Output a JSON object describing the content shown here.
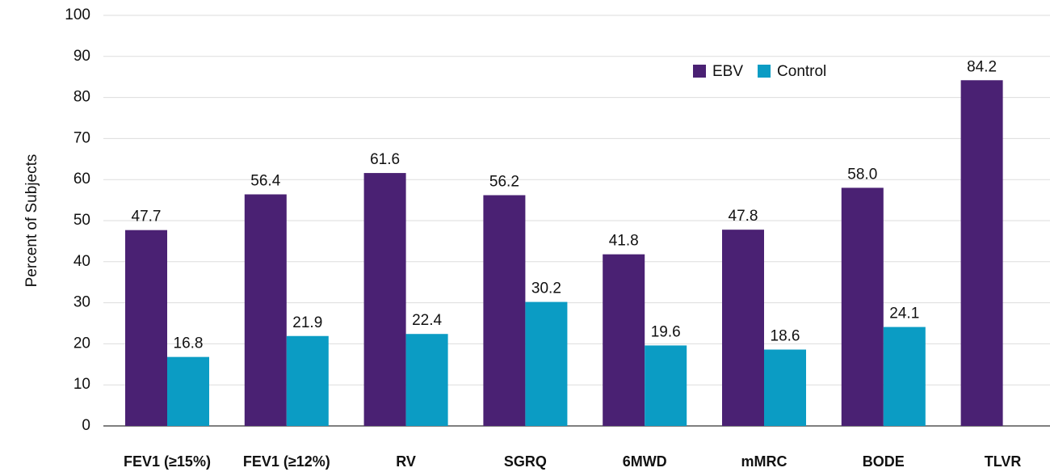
{
  "chart_data": {
    "type": "bar",
    "ylabel": "Percent of Subjects",
    "categories": [
      "FEV1 (≥15%)",
      "FEV1 (≥12%)",
      "RV",
      "SGRQ",
      "6MWD",
      "mMRC",
      "BODE",
      "TLVR"
    ],
    "series": [
      {
        "name": "EBV",
        "color": "#4a2173",
        "values": [
          47.7,
          56.4,
          61.6,
          56.2,
          41.8,
          47.8,
          58.0,
          84.2
        ],
        "value_labels": [
          "47.7",
          "56.4",
          "61.6",
          "56.2",
          "41.8",
          "47.8",
          "58.0",
          "84.2"
        ]
      },
      {
        "name": "Control",
        "color": "#0b9cc4",
        "values": [
          16.8,
          21.9,
          22.4,
          30.2,
          19.6,
          18.6,
          24.1,
          null
        ],
        "value_labels": [
          "16.8",
          "21.9",
          "22.4",
          "30.2",
          "19.6",
          "18.6",
          "24.1",
          null
        ]
      }
    ],
    "ylim": [
      0,
      100
    ],
    "yticks": [
      0,
      10,
      20,
      30,
      40,
      50,
      60,
      70,
      80,
      90,
      100
    ],
    "grid": true,
    "legend": "top-right"
  }
}
